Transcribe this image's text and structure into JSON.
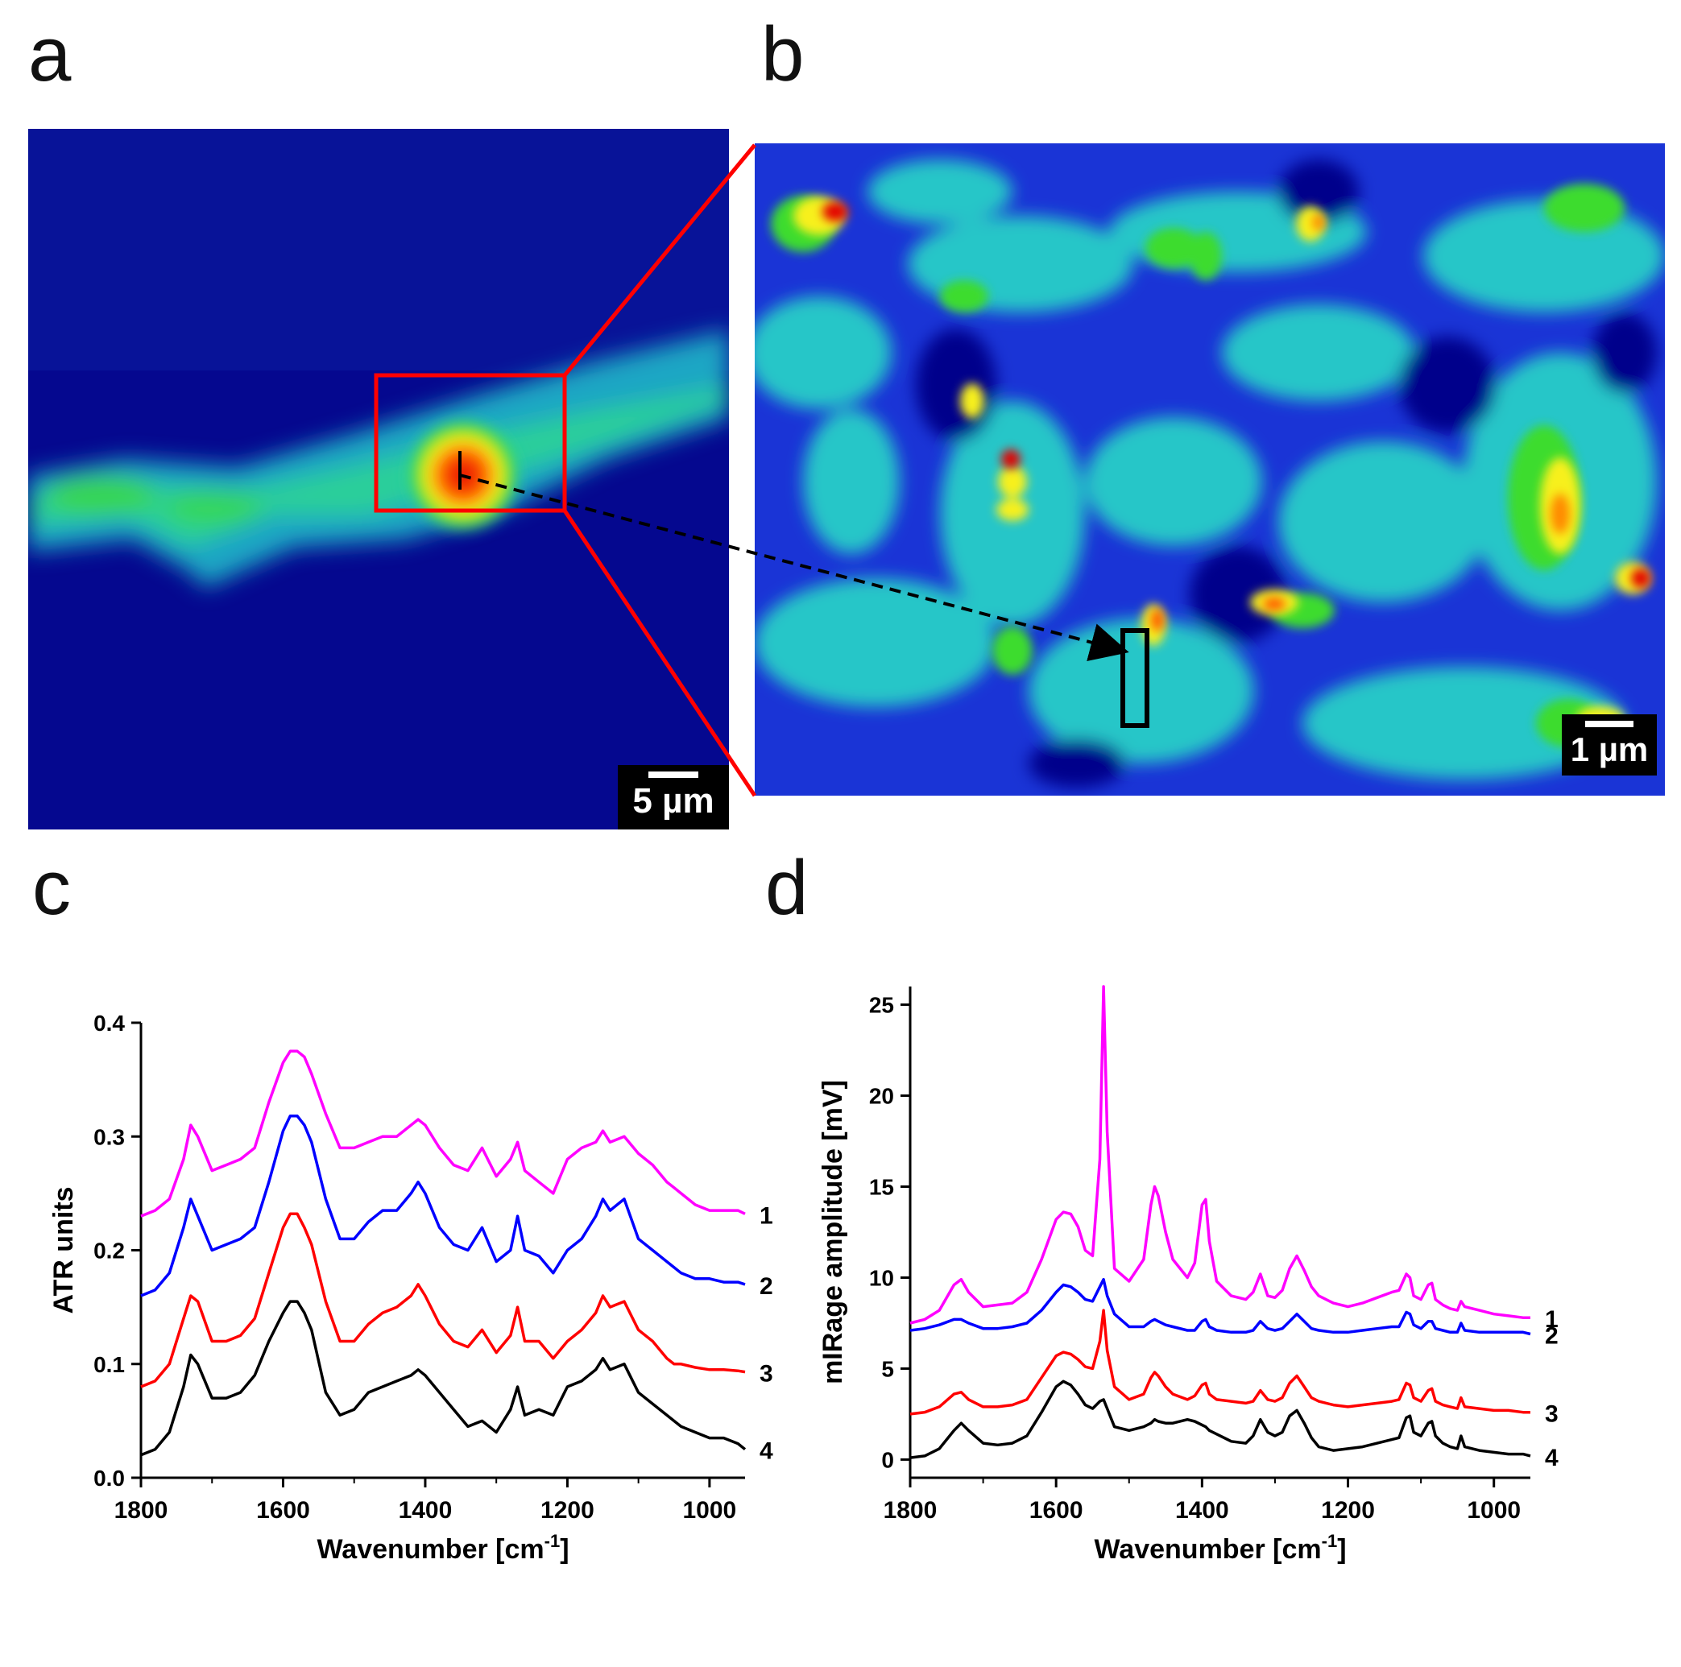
{
  "panels": {
    "a": {
      "letter": "a",
      "scale_label": "5 µm"
    },
    "b": {
      "letter": "b",
      "scale_label": "1 µm"
    },
    "c": {
      "letter": "c"
    },
    "d": {
      "letter": "d"
    }
  },
  "colors": {
    "heat_dark": "#00008b",
    "heat_blue": "#1a34d6",
    "heat_cyan": "#25c6c8",
    "heat_green": "#3ddc2e",
    "heat_yellow": "#f7f01a",
    "heat_orange": "#ff8a00",
    "heat_red": "#e30000",
    "zoom_box": "#ff0000",
    "roi_box": "#000000",
    "series1": "#ff00ff",
    "series2": "#0000ff",
    "series3": "#ff0000",
    "series4": "#000000"
  },
  "chart_data": [
    {
      "panel": "c",
      "type": "line",
      "xlabel": "Wavenumber [cm-1]",
      "xlabel_main": "Wavenumber [cm",
      "xlabel_sup": "-1",
      "xlabel_end": "]",
      "ylabel": "ATR units",
      "xlim": [
        1800,
        950
      ],
      "ylim": [
        0.0,
        0.4
      ],
      "xticks": [
        1800,
        1600,
        1400,
        1200,
        1000
      ],
      "yticks": [
        0.0,
        0.1,
        0.2,
        0.3,
        0.4
      ],
      "ytick_labels": [
        "0.0",
        "0.1",
        "0.2",
        "0.3",
        "0.4"
      ],
      "x": [
        1800,
        1780,
        1760,
        1740,
        1730,
        1720,
        1700,
        1680,
        1660,
        1640,
        1620,
        1600,
        1590,
        1580,
        1570,
        1560,
        1540,
        1520,
        1500,
        1480,
        1460,
        1440,
        1420,
        1410,
        1400,
        1380,
        1360,
        1340,
        1320,
        1300,
        1280,
        1270,
        1260,
        1240,
        1220,
        1200,
        1180,
        1160,
        1150,
        1140,
        1120,
        1100,
        1080,
        1060,
        1050,
        1040,
        1020,
        1000,
        980,
        960,
        950
      ],
      "series": [
        {
          "name": "1",
          "color_key": "series1",
          "values": [
            0.23,
            0.235,
            0.245,
            0.28,
            0.31,
            0.3,
            0.27,
            0.275,
            0.28,
            0.29,
            0.33,
            0.365,
            0.375,
            0.375,
            0.37,
            0.355,
            0.32,
            0.29,
            0.29,
            0.295,
            0.3,
            0.3,
            0.31,
            0.315,
            0.31,
            0.29,
            0.275,
            0.27,
            0.29,
            0.265,
            0.28,
            0.295,
            0.27,
            0.26,
            0.25,
            0.28,
            0.29,
            0.295,
            0.305,
            0.295,
            0.3,
            0.285,
            0.275,
            0.26,
            0.255,
            0.25,
            0.24,
            0.235,
            0.235,
            0.235,
            0.232
          ]
        },
        {
          "name": "2",
          "color_key": "series2",
          "values": [
            0.16,
            0.165,
            0.18,
            0.22,
            0.245,
            0.23,
            0.2,
            0.205,
            0.21,
            0.22,
            0.26,
            0.305,
            0.318,
            0.318,
            0.31,
            0.295,
            0.245,
            0.21,
            0.21,
            0.225,
            0.235,
            0.235,
            0.25,
            0.26,
            0.25,
            0.22,
            0.205,
            0.2,
            0.22,
            0.19,
            0.2,
            0.23,
            0.2,
            0.195,
            0.18,
            0.2,
            0.21,
            0.23,
            0.245,
            0.235,
            0.245,
            0.21,
            0.2,
            0.19,
            0.185,
            0.18,
            0.175,
            0.175,
            0.172,
            0.172,
            0.17
          ]
        },
        {
          "name": "3",
          "color_key": "series3",
          "values": [
            0.08,
            0.085,
            0.1,
            0.14,
            0.16,
            0.155,
            0.12,
            0.12,
            0.125,
            0.14,
            0.18,
            0.22,
            0.232,
            0.232,
            0.22,
            0.205,
            0.155,
            0.12,
            0.12,
            0.135,
            0.145,
            0.15,
            0.16,
            0.17,
            0.16,
            0.135,
            0.12,
            0.115,
            0.13,
            0.11,
            0.125,
            0.15,
            0.12,
            0.12,
            0.105,
            0.12,
            0.13,
            0.145,
            0.16,
            0.15,
            0.155,
            0.13,
            0.12,
            0.105,
            0.1,
            0.1,
            0.097,
            0.095,
            0.095,
            0.094,
            0.093
          ]
        },
        {
          "name": "4",
          "color_key": "series4",
          "values": [
            0.02,
            0.025,
            0.04,
            0.08,
            0.108,
            0.1,
            0.07,
            0.07,
            0.075,
            0.09,
            0.12,
            0.145,
            0.155,
            0.155,
            0.145,
            0.13,
            0.075,
            0.055,
            0.06,
            0.075,
            0.08,
            0.085,
            0.09,
            0.095,
            0.09,
            0.075,
            0.06,
            0.045,
            0.05,
            0.04,
            0.06,
            0.08,
            0.055,
            0.06,
            0.055,
            0.08,
            0.085,
            0.095,
            0.105,
            0.095,
            0.1,
            0.075,
            0.065,
            0.055,
            0.05,
            0.045,
            0.04,
            0.035,
            0.035,
            0.03,
            0.025
          ]
        }
      ]
    },
    {
      "panel": "d",
      "type": "line",
      "xlabel": "Wavenumber [cm-1]",
      "xlabel_main": "Wavenumber [cm",
      "xlabel_sup": "-1",
      "xlabel_end": "]",
      "ylabel": "mIRage amplitude [mV]",
      "xlim": [
        1800,
        950
      ],
      "ylim": [
        -1,
        26
      ],
      "xticks": [
        1800,
        1600,
        1400,
        1200,
        1000
      ],
      "yticks": [
        0,
        5,
        10,
        15,
        20,
        25
      ],
      "ytick_labels": [
        "0",
        "5",
        "10",
        "15",
        "20",
        "25"
      ],
      "x": [
        1800,
        1780,
        1760,
        1740,
        1730,
        1720,
        1700,
        1680,
        1660,
        1640,
        1620,
        1600,
        1590,
        1580,
        1570,
        1560,
        1550,
        1540,
        1535,
        1530,
        1520,
        1500,
        1480,
        1470,
        1465,
        1460,
        1450,
        1440,
        1420,
        1410,
        1400,
        1395,
        1390,
        1380,
        1360,
        1340,
        1330,
        1320,
        1310,
        1300,
        1290,
        1280,
        1270,
        1260,
        1250,
        1240,
        1220,
        1200,
        1180,
        1160,
        1140,
        1130,
        1120,
        1115,
        1110,
        1100,
        1090,
        1085,
        1080,
        1070,
        1060,
        1050,
        1045,
        1040,
        1020,
        1000,
        980,
        960,
        950
      ],
      "series": [
        {
          "name": "1",
          "color_key": "series1",
          "values": [
            7.5,
            7.7,
            8.2,
            9.6,
            9.9,
            9.2,
            8.4,
            8.5,
            8.6,
            9.2,
            11.0,
            13.2,
            13.6,
            13.5,
            12.8,
            11.5,
            11.2,
            16.5,
            26.0,
            18.0,
            10.5,
            9.8,
            11.0,
            14.0,
            15.0,
            14.5,
            12.5,
            11.0,
            10.0,
            10.8,
            14.0,
            14.3,
            12.0,
            9.8,
            9.0,
            8.8,
            9.2,
            10.2,
            9.0,
            8.9,
            9.3,
            10.5,
            11.2,
            10.4,
            9.5,
            9.0,
            8.6,
            8.4,
            8.6,
            8.9,
            9.2,
            9.3,
            10.2,
            10.0,
            9.0,
            8.8,
            9.6,
            9.7,
            8.8,
            8.5,
            8.3,
            8.2,
            8.7,
            8.4,
            8.2,
            8.0,
            7.9,
            7.8,
            7.8
          ]
        },
        {
          "name": "2",
          "color_key": "series2",
          "values": [
            7.1,
            7.2,
            7.4,
            7.7,
            7.7,
            7.5,
            7.2,
            7.2,
            7.3,
            7.5,
            8.2,
            9.2,
            9.6,
            9.5,
            9.2,
            8.8,
            8.7,
            9.5,
            9.9,
            9.0,
            8.0,
            7.3,
            7.3,
            7.6,
            7.7,
            7.6,
            7.4,
            7.3,
            7.1,
            7.1,
            7.6,
            7.7,
            7.3,
            7.1,
            7.0,
            7.0,
            7.1,
            7.6,
            7.2,
            7.1,
            7.2,
            7.6,
            8.0,
            7.6,
            7.2,
            7.1,
            7.0,
            7.0,
            7.1,
            7.2,
            7.3,
            7.3,
            8.1,
            8.0,
            7.4,
            7.2,
            7.6,
            7.6,
            7.2,
            7.1,
            7.0,
            7.0,
            7.5,
            7.1,
            7.0,
            7.0,
            7.0,
            7.0,
            6.9
          ]
        },
        {
          "name": "3",
          "color_key": "series3",
          "values": [
            2.5,
            2.6,
            2.9,
            3.6,
            3.7,
            3.3,
            2.9,
            2.9,
            3.0,
            3.3,
            4.5,
            5.7,
            5.9,
            5.8,
            5.5,
            5.1,
            5.0,
            6.5,
            8.2,
            6.0,
            4.0,
            3.3,
            3.6,
            4.5,
            4.8,
            4.6,
            4.0,
            3.6,
            3.3,
            3.5,
            4.1,
            4.2,
            3.6,
            3.3,
            3.2,
            3.1,
            3.2,
            3.8,
            3.3,
            3.2,
            3.4,
            4.2,
            4.6,
            4.0,
            3.4,
            3.2,
            3.0,
            2.9,
            3.0,
            3.1,
            3.2,
            3.3,
            4.2,
            4.1,
            3.4,
            3.2,
            3.8,
            3.9,
            3.2,
            3.0,
            2.9,
            2.8,
            3.4,
            2.9,
            2.8,
            2.7,
            2.7,
            2.6,
            2.6
          ]
        },
        {
          "name": "4",
          "color_key": "series4",
          "values": [
            0.1,
            0.2,
            0.6,
            1.6,
            2.0,
            1.6,
            0.9,
            0.8,
            0.9,
            1.3,
            2.6,
            4.0,
            4.3,
            4.1,
            3.6,
            3.0,
            2.8,
            3.2,
            3.3,
            2.8,
            1.8,
            1.6,
            1.8,
            2.0,
            2.2,
            2.1,
            2.0,
            2.0,
            2.2,
            2.1,
            1.9,
            1.8,
            1.6,
            1.4,
            1.0,
            0.9,
            1.3,
            2.2,
            1.5,
            1.3,
            1.5,
            2.4,
            2.7,
            2.0,
            1.2,
            0.7,
            0.5,
            0.6,
            0.7,
            0.9,
            1.1,
            1.2,
            2.3,
            2.4,
            1.5,
            1.3,
            2.0,
            2.1,
            1.3,
            0.9,
            0.7,
            0.6,
            1.3,
            0.7,
            0.5,
            0.4,
            0.3,
            0.3,
            0.2
          ]
        }
      ]
    }
  ]
}
